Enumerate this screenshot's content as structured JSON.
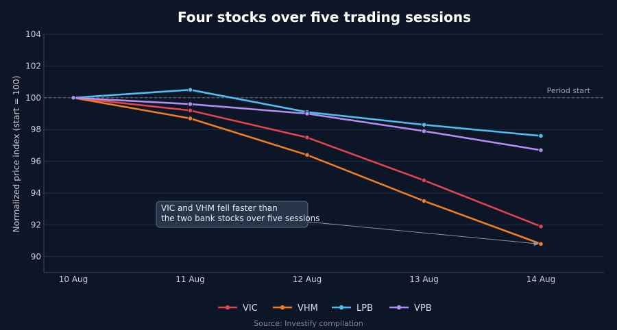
{
  "chart_data": {
    "type": "line",
    "title": "Four stocks over five trading sessions",
    "xlabel": "",
    "ylabel": "Normalized price index (start = 100)",
    "categories": [
      "10 Aug",
      "11 Aug",
      "12 Aug",
      "13 Aug",
      "14 Aug"
    ],
    "ylim": [
      89,
      104
    ],
    "yticks": [
      90,
      92,
      94,
      96,
      98,
      100,
      102,
      104
    ],
    "grid": true,
    "legend_position": "bottom",
    "series": [
      {
        "name": "VIC",
        "color": "#e0444f",
        "values": [
          100,
          99.2,
          97.5,
          94.8,
          91.9
        ]
      },
      {
        "name": "VHM",
        "color": "#f07d22",
        "values": [
          100,
          98.7,
          96.4,
          93.5,
          90.8
        ]
      },
      {
        "name": "LPB",
        "color": "#4fbdf0",
        "values": [
          100,
          100.5,
          99.1,
          98.3,
          97.6
        ]
      },
      {
        "name": "VPB",
        "color": "#b48cf2",
        "values": [
          100,
          99.6,
          99.0,
          97.9,
          96.7
        ]
      }
    ],
    "reference_line": {
      "value": 100,
      "label": "Period start"
    },
    "annotation": {
      "lines": [
        "VIC and VHM fell faster than",
        "the two bank stocks over five sessions"
      ],
      "target": {
        "category": "14 Aug",
        "value": 90.8
      }
    },
    "source": "Source: Investify compilation"
  }
}
